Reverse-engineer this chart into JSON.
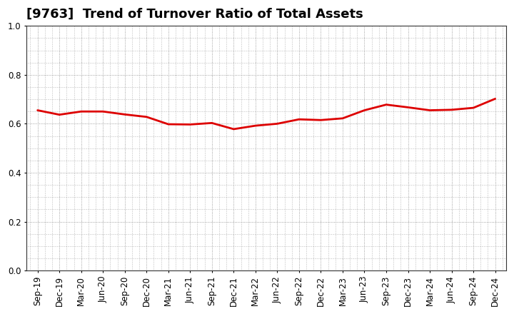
{
  "title": "[9763]  Trend of Turnover Ratio of Total Assets",
  "x_labels": [
    "Sep-19",
    "Dec-19",
    "Mar-20",
    "Jun-20",
    "Sep-20",
    "Dec-20",
    "Mar-21",
    "Jun-21",
    "Sep-21",
    "Dec-21",
    "Mar-22",
    "Jun-22",
    "Sep-22",
    "Dec-22",
    "Mar-23",
    "Jun-23",
    "Sep-23",
    "Dec-23",
    "Mar-24",
    "Jun-24",
    "Sep-24",
    "Dec-24"
  ],
  "y_values": [
    0.655,
    0.637,
    0.65,
    0.65,
    0.638,
    0.628,
    0.598,
    0.597,
    0.603,
    0.578,
    0.592,
    0.6,
    0.618,
    0.615,
    0.622,
    0.655,
    0.678,
    0.667,
    0.655,
    0.657,
    0.665,
    0.702
  ],
  "line_color": "#dd0000",
  "ylim": [
    0.0,
    1.0
  ],
  "yticks": [
    0.0,
    0.2,
    0.4,
    0.6,
    0.8,
    1.0
  ],
  "title_fontsize": 13,
  "axis_fontsize": 8.5,
  "background_color": "#ffffff",
  "grid_color": "#888888",
  "line_width": 2.0
}
